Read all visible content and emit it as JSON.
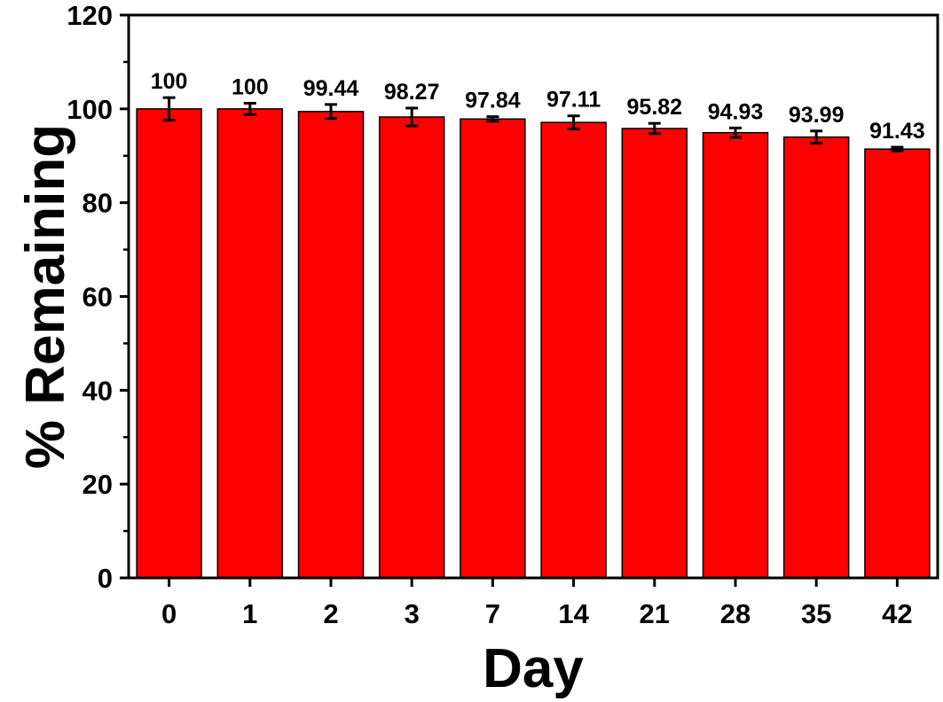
{
  "chart_data": {
    "type": "bar",
    "xlabel": "Day",
    "ylabel": "% Remaining",
    "categories": [
      "0",
      "1",
      "2",
      "3",
      "7",
      "14",
      "21",
      "28",
      "35",
      "42"
    ],
    "values": [
      100,
      100,
      99.44,
      98.27,
      97.84,
      97.11,
      95.82,
      94.93,
      93.99,
      91.43
    ],
    "value_labels": [
      "100",
      "100",
      "99.44",
      "98.27",
      "97.84",
      "97.11",
      "95.82",
      "94.93",
      "93.99",
      "91.43"
    ],
    "errors": [
      2.4,
      1.2,
      1.5,
      1.9,
      0.5,
      1.4,
      1.1,
      1.0,
      1.3,
      0.4
    ],
    "ylim": [
      0,
      120
    ],
    "yticks": [
      0,
      20,
      40,
      60,
      80,
      100,
      120
    ],
    "ytick_labels": [
      "0",
      "20",
      "40",
      "60",
      "80",
      "100",
      "120"
    ],
    "grid": false,
    "bar_color": "#ff0000",
    "edge_color": "#000000"
  }
}
